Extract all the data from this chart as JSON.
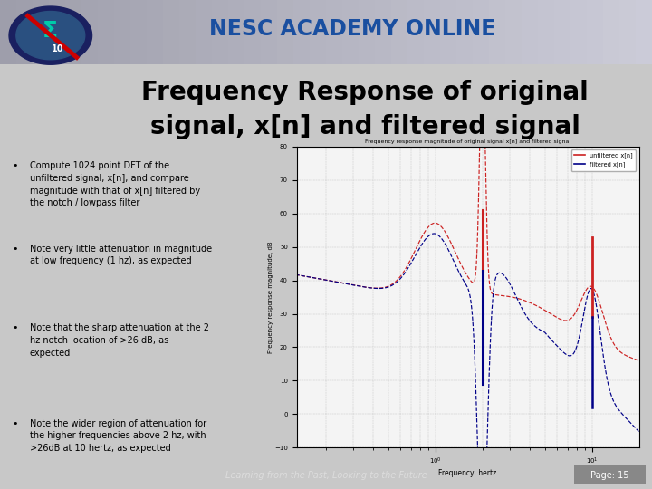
{
  "title_line1": "Frequency Response of original",
  "title_line2": "signal, x[n] and filtered signal",
  "header_text": "NESC ACADEMY ONLINE",
  "footer_left": "Learning from the Past, Looking to the Future",
  "footer_right": "Page: 15",
  "header_bg_top": "#b0b8c8",
  "header_bg_bottom": "#8090a8",
  "content_bg": "#ffffff",
  "slide_bg": "#c8c8c8",
  "header_text_color": "#1a4fa0",
  "title_color": "#000000",
  "footer_bg": "#606060",
  "footer_text_color": "#ffffff",
  "footer_italic_color": "#dddddd",
  "blue_line_color": "#2255aa",
  "title_fontsize": 20,
  "bullet_fontsize": 7,
  "bullet_points": [
    "Compute 1024 point DFT of the\nunfiltered signal, x[n], and compare\nmagnitude with that of x[n] filtered by\nthe notch / lowpass filter",
    "Note very little attenuation in magnitude\nat low frequency (1 hz), as expected",
    "Note that the sharp attenuation at the 2\nhz notch location of >26 dB, as\nexpected",
    "Note the wider region of attenuation for\nthe higher frequencies above 2 hz, with\n>26dB at 10 hertz, as expected"
  ],
  "plot_title": "Frequency response magnitude of original signal x[n] and filtered signal",
  "xlabel": "Frequency, hertz",
  "ylabel": "Frequency response magnitude, dB",
  "ylim": [
    -10,
    80
  ],
  "legend_labels": [
    "unfiltered x[n]",
    "filtered x[n]"
  ],
  "unfiltered_color": "#cc2222",
  "filtered_color": "#000088",
  "grid_color": "#bbbbbb",
  "plot_bg": "#f4f4f4"
}
